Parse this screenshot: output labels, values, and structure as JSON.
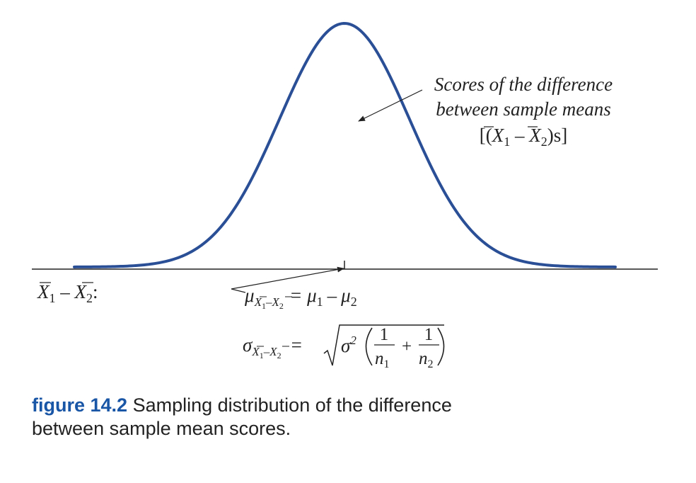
{
  "colors": {
    "curve": "#2b4f96",
    "ink": "#222222",
    "caption_label": "#1a56a6"
  },
  "annotation": {
    "line1": "Scores of the difference",
    "line2": "between sample means",
    "line3_open": "[(",
    "line3_x1": "X",
    "line3_sub1": "1",
    "line3_minus": " – ",
    "line3_x2": "X",
    "line3_sub2": "2",
    "line3_close": ")s]"
  },
  "axis_label": {
    "x1": "X",
    "sub1": "1",
    "minus": " – ",
    "x2": "X",
    "sub2": "2",
    "colon": ":"
  },
  "mean_formula": {
    "mu": "μ",
    "sub_x1": "X",
    "sub_1": "1",
    "sub_minus": "–",
    "sub_x2": "X",
    "sub_2": "2",
    "equals": "=",
    "mu1": "μ",
    "mu1_sub": "1",
    "minus": "–",
    "mu2": "μ",
    "mu2_sub": "2"
  },
  "sd_formula": {
    "sigma": "σ",
    "sub_x1": "X",
    "sub_1": "1",
    "sub_minus": "–",
    "sub_x2": "X",
    "sub_2": "2",
    "equals": "=",
    "sigma2": "σ",
    "sup2": "2",
    "frac1_num": "1",
    "frac1_den": "n",
    "frac1_den_sub": "1",
    "plus": "+",
    "frac2_num": "1",
    "frac2_den": "n",
    "frac2_den_sub": "2"
  },
  "caption": {
    "label": "figure  14.2",
    "text": "Sampling distribution of the difference",
    "text2": "between sample mean scores."
  }
}
